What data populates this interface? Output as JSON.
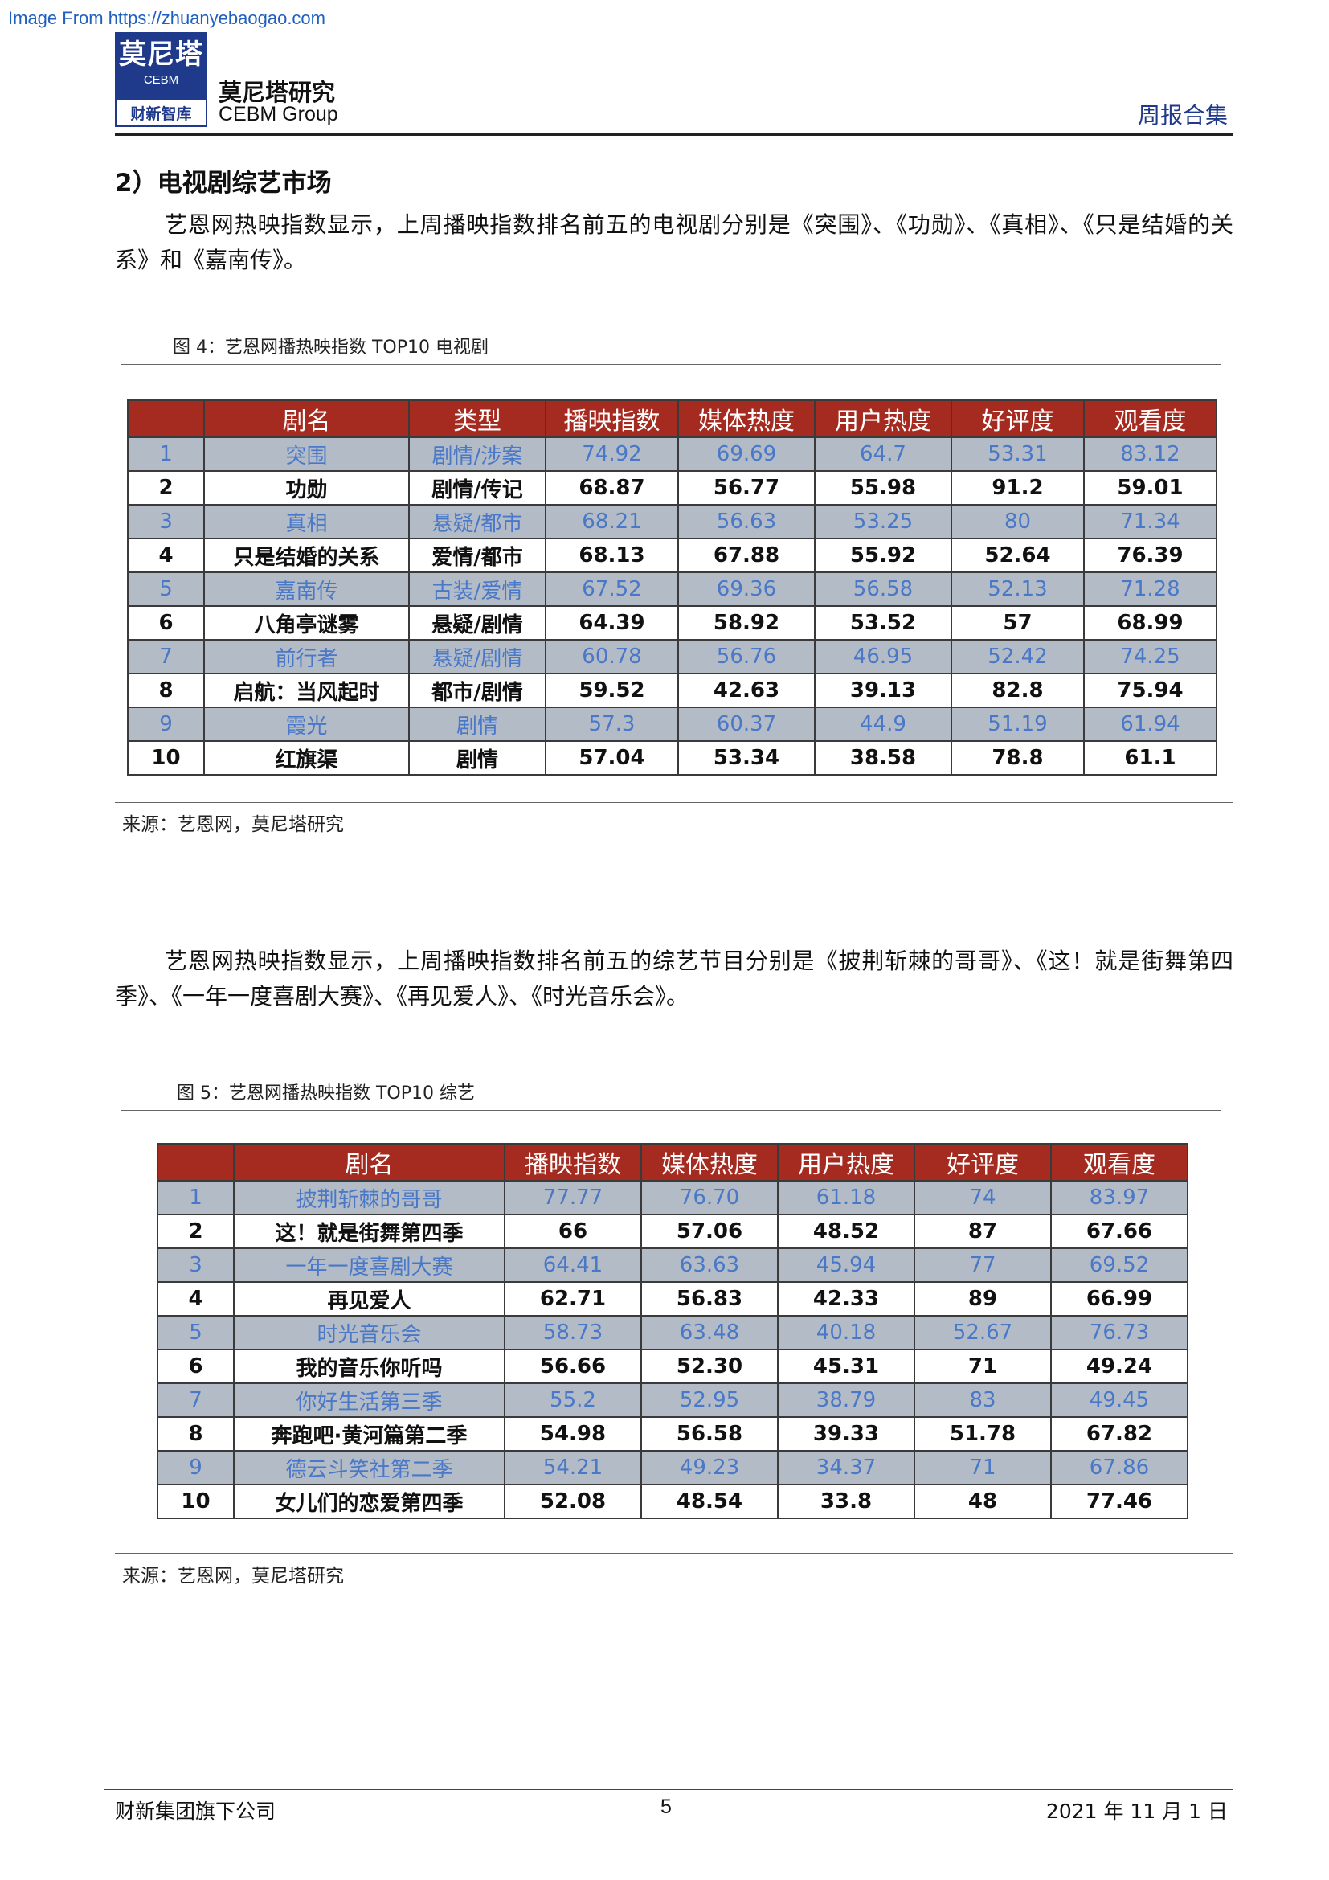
{
  "watermark": "Image From https://zhuanyebaogao.com",
  "header": {
    "logo_main": "莫尼塔",
    "logo_sub": "CEBM",
    "logo_bottom": "财新智库",
    "brand_name": "莫尼塔研究",
    "brand_en": "CEBM Group",
    "right": "周报合集"
  },
  "section_title": "2）电视剧综艺市场",
  "para1": "艺恩网热映指数显示，上周播映指数排名前五的电视剧分别是《突围》、《功勋》、《真相》、《只是结婚的关系》和《嘉南传》。",
  "fig4": {
    "caption": "图 4：艺恩网播热映指数 TOP10 电视剧",
    "headers": [
      "剧名",
      "类型",
      "播映指数",
      "媒体热度",
      "用户热度",
      "好评度",
      "观看度"
    ],
    "rows": [
      [
        "1",
        "突围",
        "剧情/涉案",
        "74.92",
        "69.69",
        "64.7",
        "53.31",
        "83.12"
      ],
      [
        "2",
        "功勋",
        "剧情/传记",
        "68.87",
        "56.77",
        "55.98",
        "91.2",
        "59.01"
      ],
      [
        "3",
        "真相",
        "悬疑/都市",
        "68.21",
        "56.63",
        "53.25",
        "80",
        "71.34"
      ],
      [
        "4",
        "只是结婚的关系",
        "爱情/都市",
        "68.13",
        "67.88",
        "55.92",
        "52.64",
        "76.39"
      ],
      [
        "5",
        "嘉南传",
        "古装/爱情",
        "67.52",
        "69.36",
        "56.58",
        "52.13",
        "71.28"
      ],
      [
        "6",
        "八角亭谜雾",
        "悬疑/剧情",
        "64.39",
        "58.92",
        "53.52",
        "57",
        "68.99"
      ],
      [
        "7",
        "前行者",
        "悬疑/剧情",
        "60.78",
        "56.76",
        "46.95",
        "52.42",
        "74.25"
      ],
      [
        "8",
        "启航：当风起时",
        "都市/剧情",
        "59.52",
        "42.63",
        "39.13",
        "82.8",
        "75.94"
      ],
      [
        "9",
        "霞光",
        "剧情",
        "57.3",
        "60.37",
        "44.9",
        "51.19",
        "61.94"
      ],
      [
        "10",
        "红旗渠",
        "剧情",
        "57.04",
        "53.34",
        "38.58",
        "78.8",
        "61.1"
      ]
    ],
    "source": "来源：艺恩网，莫尼塔研究"
  },
  "para2": "艺恩网热映指数显示，上周播映指数排名前五的综艺节目分别是《披荆斩棘的哥哥》、《这！就是街舞第四季》、《一年一度喜剧大赛》、《再见爱人》、《时光音乐会》。",
  "fig5": {
    "caption": "图 5：艺恩网播热映指数 TOP10 综艺",
    "headers": [
      "剧名",
      "播映指数",
      "媒体热度",
      "用户热度",
      "好评度",
      "观看度"
    ],
    "rows": [
      [
        "1",
        "披荆斩棘的哥哥",
        "77.77",
        "76.70",
        "61.18",
        "74",
        "83.97"
      ],
      [
        "2",
        "这！就是街舞第四季",
        "66",
        "57.06",
        "48.52",
        "87",
        "67.66"
      ],
      [
        "3",
        "一年一度喜剧大赛",
        "64.41",
        "63.63",
        "45.94",
        "77",
        "69.52"
      ],
      [
        "4",
        "再见爱人",
        "62.71",
        "56.83",
        "42.33",
        "89",
        "66.99"
      ],
      [
        "5",
        "时光音乐会",
        "58.73",
        "63.48",
        "40.18",
        "52.67",
        "76.73"
      ],
      [
        "6",
        "我的音乐你听吗",
        "56.66",
        "52.30",
        "45.31",
        "71",
        "49.24"
      ],
      [
        "7",
        "你好生活第三季",
        "55.2",
        "52.95",
        "38.79",
        "83",
        "49.45"
      ],
      [
        "8",
        "奔跑吧·黄河篇第二季",
        "54.98",
        "56.58",
        "39.33",
        "51.78",
        "67.82"
      ],
      [
        "9",
        "德云斗笑社第二季",
        "54.21",
        "49.23",
        "34.37",
        "71",
        "67.86"
      ],
      [
        "10",
        "女儿们的恋爱第四季",
        "52.08",
        "48.54",
        "33.8",
        "48",
        "77.46"
      ]
    ],
    "source": "来源：艺恩网，莫尼塔研究"
  },
  "footer": {
    "left": "财新集团旗下公司",
    "page_number": "5",
    "date": "2021 年 11 月 1 日"
  }
}
